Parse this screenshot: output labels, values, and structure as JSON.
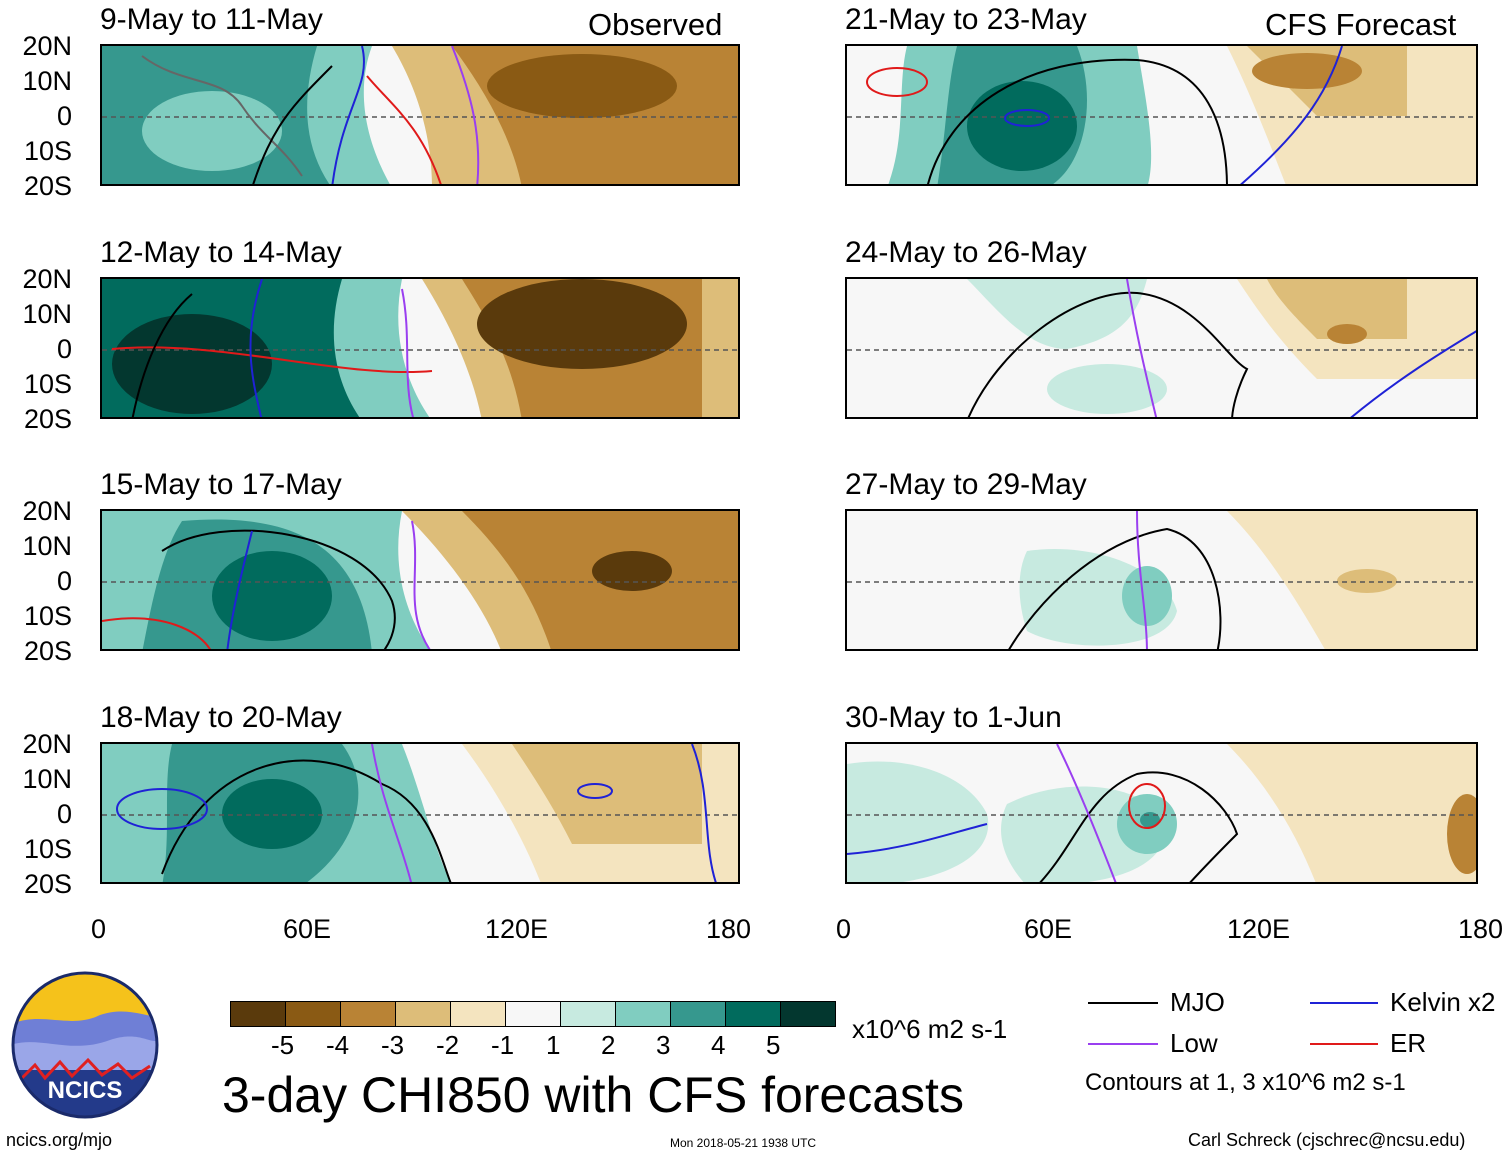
{
  "header": {
    "observed_label": "Observed",
    "forecast_label": "CFS Forecast"
  },
  "panels": [
    {
      "title": "9-May to 11-May"
    },
    {
      "title": "12-May to 14-May"
    },
    {
      "title": "15-May to 17-May"
    },
    {
      "title": "18-May to 20-May"
    },
    {
      "title": "21-May to 23-May"
    },
    {
      "title": "24-May to 26-May"
    },
    {
      "title": "27-May to 29-May"
    },
    {
      "title": "30-May to 1-Jun"
    }
  ],
  "axes": {
    "lat_labels": [
      "20N",
      "10N",
      "0",
      "10S",
      "20S"
    ],
    "lon_labels": [
      "0",
      "60E",
      "120E",
      "180"
    ]
  },
  "colorbar": {
    "colors": [
      "#5a3a0c",
      "#8a5a14",
      "#b98335",
      "#ddbd79",
      "#f4e4bf",
      "#f7f7f7",
      "#c7eae0",
      "#80cdc0",
      "#36988e",
      "#016b5d",
      "#03372f"
    ],
    "tick_labels": [
      "-5",
      "-4",
      "-3",
      "-2",
      "-1",
      "1",
      "2",
      "3",
      "4",
      "5"
    ],
    "units": "x10^6 m2 s-1"
  },
  "title": "3-day CHI850 with CFS forecasts",
  "legend": {
    "items": [
      {
        "label": "MJO",
        "color": "#000000"
      },
      {
        "label": "Kelvin x2",
        "color": "#1f22d6"
      },
      {
        "label": "Low",
        "color": "#9a3ff0"
      },
      {
        "label": "ER",
        "color": "#e01a1a"
      }
    ],
    "contours_note": "Contours at 1, 3 x10^6 m2 s-1"
  },
  "logo": {
    "text": "NCICS"
  },
  "footer": {
    "url": "ncics.org/mjo",
    "timestamp": "Mon 2018-05-21 1938 UTC",
    "author": "Carl Schreck (cjschrec@ncsu.edu)"
  }
}
